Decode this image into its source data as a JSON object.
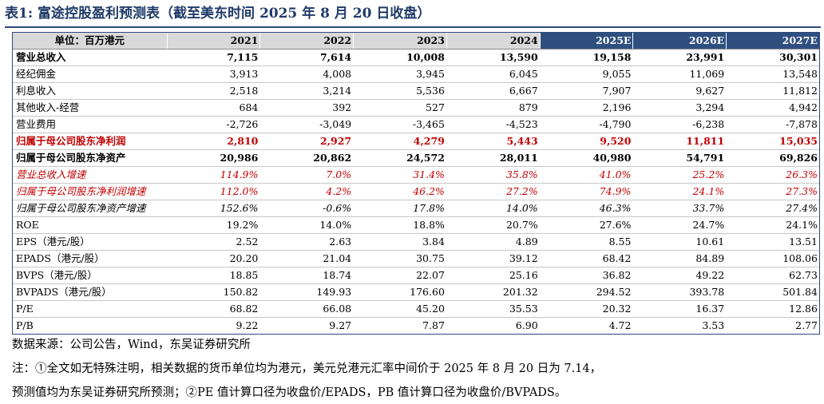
{
  "title": "表1:  富途控股盈利预测表（截至美东时间 2025 年 8 月 20 日收盘）",
  "header": {
    "unit_label": "单位：百万港元",
    "years": [
      "2021",
      "2022",
      "2023",
      "2024",
      "2025E",
      "2026E",
      "2027E"
    ]
  },
  "rows": [
    {
      "label": "营业总收入",
      "values": [
        "7,115",
        "7,614",
        "10,008",
        "13,590",
        "19,158",
        "23,991",
        "30,301"
      ]
    },
    {
      "label": "经纪佣金",
      "values": [
        "3,913",
        "4,008",
        "3,945",
        "6,045",
        "9,055",
        "11,069",
        "13,548"
      ]
    },
    {
      "label": "利息收入",
      "values": [
        "2,518",
        "3,214",
        "5,536",
        "6,667",
        "7,907",
        "9,627",
        "11,812"
      ]
    },
    {
      "label": "其他收入-经营",
      "values": [
        "684",
        "392",
        "527",
        "879",
        "2,196",
        "3,294",
        "4,942"
      ]
    },
    {
      "label": "营业费用",
      "values": [
        "-2,726",
        "-3,049",
        "-3,465",
        "-4,523",
        "-4,790",
        "-6,238",
        "-7,878"
      ]
    },
    {
      "label": "归属于母公司股东净利润",
      "values": [
        "2,810",
        "2,927",
        "4,279",
        "5,443",
        "9,520",
        "11,811",
        "15,035"
      ]
    },
    {
      "label": "归属于母公司股东净资产",
      "values": [
        "20,986",
        "20,862",
        "24,572",
        "28,011",
        "40,980",
        "54,791",
        "69,826"
      ]
    },
    {
      "label": "营业总收入增速",
      "values": [
        "114.9%",
        "7.0%",
        "31.4%",
        "35.8%",
        "41.0%",
        "25.2%",
        "26.3%"
      ]
    },
    {
      "label": "归属于母公司股东净利润增速",
      "values": [
        "112.0%",
        "4.2%",
        "46.2%",
        "27.2%",
        "74.9%",
        "24.1%",
        "27.3%"
      ]
    },
    {
      "label": "归属于母公司股东净资产增速",
      "values": [
        "152.6%",
        "-0.6%",
        "17.8%",
        "14.0%",
        "46.3%",
        "33.7%",
        "27.4%"
      ]
    },
    {
      "label": "ROE",
      "values": [
        "19.2%",
        "14.0%",
        "18.8%",
        "20.7%",
        "27.6%",
        "24.7%",
        "24.1%"
      ]
    },
    {
      "label": "EPS（港元/股）",
      "values": [
        "2.52",
        "2.63",
        "3.84",
        "4.89",
        "8.55",
        "10.61",
        "13.51"
      ]
    },
    {
      "label": "EPADS（港元/股）",
      "values": [
        "20.20",
        "21.04",
        "30.75",
        "39.12",
        "68.42",
        "84.89",
        "108.06"
      ]
    },
    {
      "label": "BVPS（港元/股）",
      "values": [
        "18.85",
        "18.74",
        "22.07",
        "25.16",
        "36.82",
        "49.22",
        "62.73"
      ]
    },
    {
      "label": "BVPADS（港元/股）",
      "values": [
        "150.82",
        "149.93",
        "176.60",
        "201.32",
        "294.52",
        "393.78",
        "501.84"
      ]
    },
    {
      "label": "P/E",
      "values": [
        "68.82",
        "66.08",
        "45.20",
        "35.53",
        "20.32",
        "16.37",
        "12.86"
      ]
    },
    {
      "label": "P/B",
      "values": [
        "9.22",
        "9.27",
        "7.87",
        "6.90",
        "4.72",
        "3.53",
        "2.77"
      ]
    }
  ],
  "footer": {
    "source": "数据来源：公司公告，Wind，东吴证券研究所",
    "note_line1": "注：①全文如无特殊注明，相关数据的货币单位均为港元，美元兑港元汇率中间价于 2025 年 8 月 20 日为 7.14，",
    "note_line2": "预测值均为东吴证券研究所预测；②PE 值计算口径为收盘价/EPADS，PB 值计算口径为收盘价/BVPADS。"
  },
  "colors": {
    "accent": "#2f4f7f",
    "highlight_red": "#c00000",
    "header_gray": "#d9d9d9"
  }
}
